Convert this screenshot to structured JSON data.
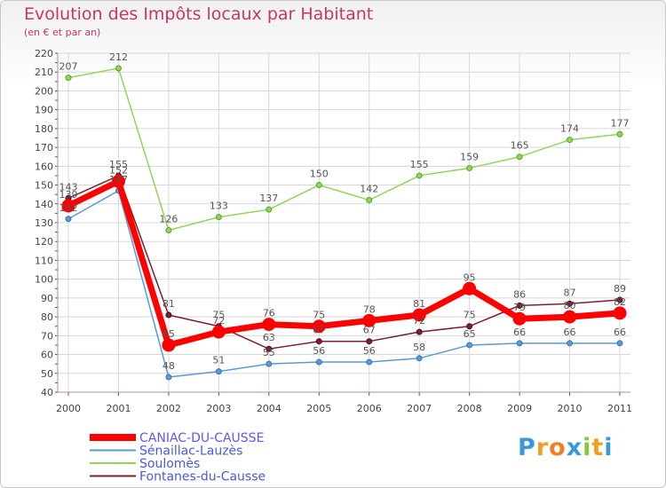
{
  "chart_data": {
    "type": "line",
    "title": "Evolution des Impôts locaux par Habitant",
    "subtitle": "(en € et par an)",
    "xlabel": "",
    "ylabel": "",
    "x": [
      "2000",
      "2001",
      "2002",
      "2003",
      "2004",
      "2005",
      "2006",
      "2007",
      "2008",
      "2009",
      "2010",
      "2011"
    ],
    "ylim": [
      40,
      220
    ],
    "yticks": [
      40,
      50,
      60,
      70,
      80,
      90,
      100,
      110,
      120,
      130,
      140,
      150,
      160,
      170,
      180,
      190,
      200,
      210,
      220
    ],
    "grid": true,
    "legend_position": "bottom-left",
    "series": [
      {
        "name": "Sénaillac-Lauzès",
        "color": "#5a9bd5",
        "values": [
          132,
          147,
          48,
          51,
          55,
          56,
          56,
          58,
          65,
          66,
          66,
          66
        ]
      },
      {
        "name": "Soulomès",
        "color": "#8fd65a",
        "values": [
          207,
          212,
          126,
          133,
          137,
          150,
          142,
          155,
          159,
          165,
          174,
          177
        ]
      },
      {
        "name": "Fontanes-du-Causse",
        "color": "#7a2030",
        "values": [
          143,
          155,
          81,
          75,
          63,
          67,
          67,
          72,
          75,
          86,
          87,
          89
        ]
      },
      {
        "name": "CANIAC-DU-CAUSSE",
        "color": "#ff0000",
        "values": [
          139,
          152,
          65,
          72,
          76,
          75,
          78,
          81,
          95,
          79,
          80,
          82
        ]
      }
    ],
    "legend_order": [
      "CANIAC-DU-CAUSSE",
      "Sénaillac-Lauzès",
      "Soulomès",
      "Fontanes-du-Causse"
    ]
  },
  "logo": {
    "text": "Proxiti",
    "letters": [
      "P",
      "r",
      "o",
      "x",
      "i",
      "t",
      "i"
    ]
  }
}
